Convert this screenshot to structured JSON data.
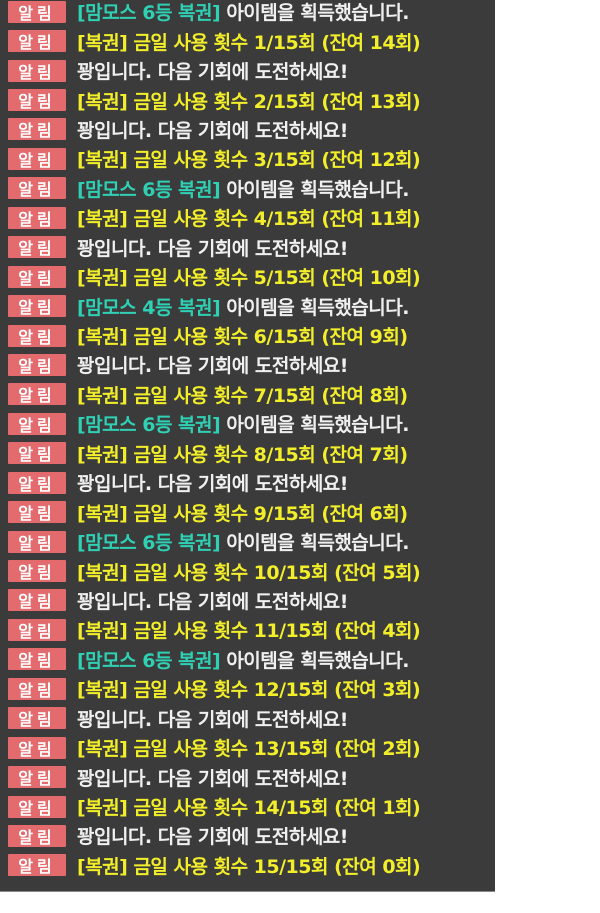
{
  "badge_label": "알림",
  "colors": {
    "background": "#3b3b3b",
    "badge": "#e36b6e",
    "item_tag": "#2fd0b4",
    "lottery_text": "#f2ee2a",
    "normal_text": "#f0f0f0"
  },
  "messages": [
    {
      "type": "item",
      "tag": "[맘모스 6등 복권]",
      "text": " 아이템을 획득했습니다."
    },
    {
      "type": "lottery",
      "text": "[복권] 금일 사용 횟수 1/15회 (잔여 14회)"
    },
    {
      "type": "miss",
      "text": "꽝입니다. 다음 기회에 도전하세요!"
    },
    {
      "type": "lottery",
      "text": "[복권] 금일 사용 횟수 2/15회 (잔여 13회)"
    },
    {
      "type": "miss",
      "text": "꽝입니다. 다음 기회에 도전하세요!"
    },
    {
      "type": "lottery",
      "text": "[복권] 금일 사용 횟수 3/15회 (잔여 12회)"
    },
    {
      "type": "item",
      "tag": "[맘모스 6등 복권]",
      "text": " 아이템을 획득했습니다."
    },
    {
      "type": "lottery",
      "text": "[복권] 금일 사용 횟수 4/15회 (잔여 11회)"
    },
    {
      "type": "miss",
      "text": "꽝입니다. 다음 기회에 도전하세요!"
    },
    {
      "type": "lottery",
      "text": "[복권] 금일 사용 횟수 5/15회 (잔여 10회)"
    },
    {
      "type": "item",
      "tag": "[맘모스 4등 복권]",
      "text": " 아이템을 획득했습니다."
    },
    {
      "type": "lottery",
      "text": "[복권] 금일 사용 횟수 6/15회 (잔여 9회)"
    },
    {
      "type": "miss",
      "text": "꽝입니다. 다음 기회에 도전하세요!"
    },
    {
      "type": "lottery",
      "text": "[복권] 금일 사용 횟수 7/15회 (잔여 8회)"
    },
    {
      "type": "item",
      "tag": "[맘모스 6등 복권]",
      "text": " 아이템을 획득했습니다."
    },
    {
      "type": "lottery",
      "text": "[복권] 금일 사용 횟수 8/15회 (잔여 7회)"
    },
    {
      "type": "miss",
      "text": "꽝입니다. 다음 기회에 도전하세요!"
    },
    {
      "type": "lottery",
      "text": "[복권] 금일 사용 횟수 9/15회 (잔여 6회)"
    },
    {
      "type": "item",
      "tag": "[맘모스 6등 복권]",
      "text": " 아이템을 획득했습니다."
    },
    {
      "type": "lottery",
      "text": "[복권] 금일 사용 횟수 10/15회 (잔여 5회)"
    },
    {
      "type": "miss",
      "text": "꽝입니다. 다음 기회에 도전하세요!"
    },
    {
      "type": "lottery",
      "text": "[복권] 금일 사용 횟수 11/15회 (잔여 4회)"
    },
    {
      "type": "item",
      "tag": "[맘모스 6등 복권]",
      "text": " 아이템을 획득했습니다."
    },
    {
      "type": "lottery",
      "text": "[복권] 금일 사용 횟수 12/15회 (잔여 3회)"
    },
    {
      "type": "miss",
      "text": "꽝입니다. 다음 기회에 도전하세요!"
    },
    {
      "type": "lottery",
      "text": "[복권] 금일 사용 횟수 13/15회 (잔여 2회)"
    },
    {
      "type": "miss",
      "text": "꽝입니다. 다음 기회에 도전하세요!"
    },
    {
      "type": "lottery",
      "text": "[복권] 금일 사용 횟수 14/15회 (잔여 1회)"
    },
    {
      "type": "miss",
      "text": "꽝입니다. 다음 기회에 도전하세요!"
    },
    {
      "type": "lottery",
      "text": "[복권] 금일 사용 횟수 15/15회 (잔여 0회)"
    }
  ]
}
